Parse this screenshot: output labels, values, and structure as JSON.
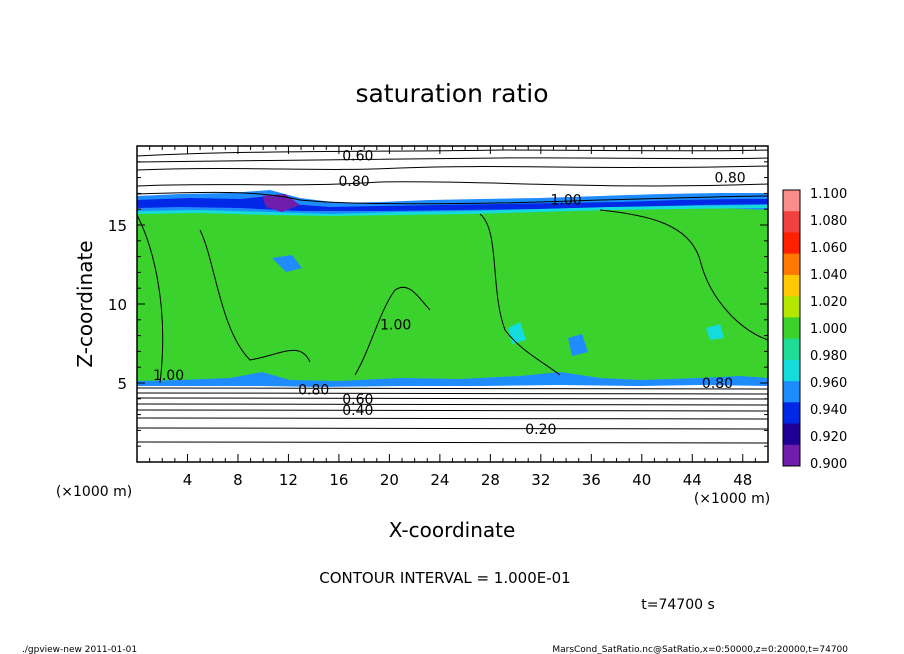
{
  "chart_data": {
    "type": "heatmap",
    "title": "saturation ratio",
    "xlabel": "X-coordinate",
    "ylabel": "Z-coordinate",
    "x_unit": "(×1000 m)",
    "z_unit": "(×1000 m)",
    "xlim": [
      0,
      50
    ],
    "ylim": [
      0,
      20
    ],
    "x_ticks": [
      "4",
      "8",
      "12",
      "16",
      "20",
      "24",
      "28",
      "32",
      "36",
      "40",
      "44",
      "48"
    ],
    "y_ticks": [
      "5",
      "10",
      "15"
    ],
    "colorbar": {
      "labels": [
        "1.100",
        "1.080",
        "1.060",
        "1.040",
        "1.020",
        "1.000",
        "0.980",
        "0.960",
        "0.940",
        "0.920",
        "0.900"
      ],
      "colors": [
        "#fa8c8c",
        "#f04040",
        "#ff2000",
        "#ff7800",
        "#ffc800",
        "#b4e600",
        "#3cd22d",
        "#1edc96",
        "#14dcdc",
        "#1e8cff",
        "#0028e6",
        "#1e0096",
        "#6e1eaa"
      ]
    },
    "contour_labels": [
      {
        "text": "0.60",
        "x": 17.5,
        "z": 19.4
      },
      {
        "text": "0.80",
        "x": 17.2,
        "z": 17.8
      },
      {
        "text": "0.80",
        "x": 47.0,
        "z": 18.0
      },
      {
        "text": "1.00",
        "x": 34.0,
        "z": 16.6
      },
      {
        "text": "1.00",
        "x": 2.5,
        "z": 5.5
      },
      {
        "text": "1.00",
        "x": 20.5,
        "z": 8.7
      },
      {
        "text": "0.80",
        "x": 14.0,
        "z": 4.6
      },
      {
        "text": "0.80",
        "x": 46.0,
        "z": 5.0
      },
      {
        "text": "0.60",
        "x": 17.5,
        "z": 4.0
      },
      {
        "text": "0.40",
        "x": 17.5,
        "z": 3.3
      },
      {
        "text": "0.20",
        "x": 32.0,
        "z": 2.1
      }
    ],
    "contour_interval_text": "CONTOUR INTERVAL = 1.000E-01",
    "time_text": "t=74700 s"
  },
  "footer": {
    "left": "./gpview-new   2011-01-01",
    "right": "MarsCond_SatRatio.nc@SatRatio,x=0:50000,z=0:20000,t=74700"
  }
}
